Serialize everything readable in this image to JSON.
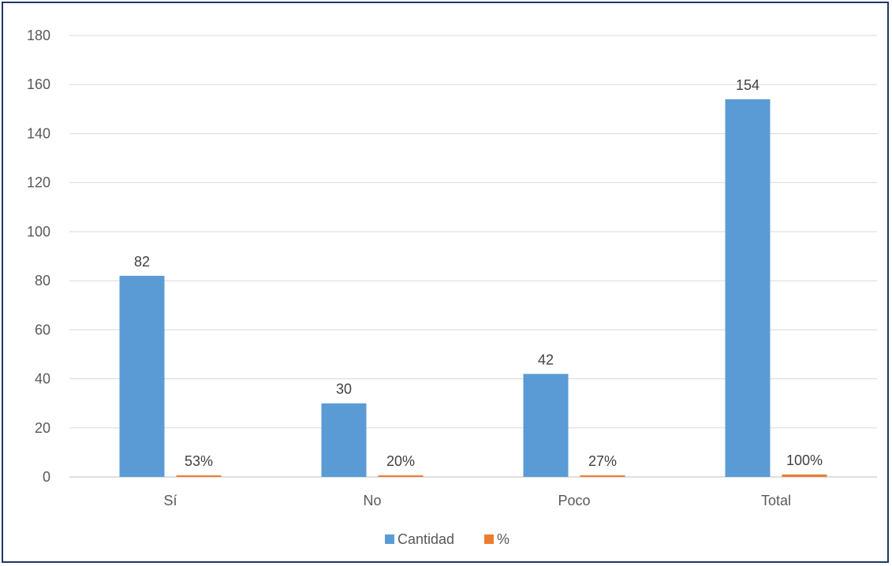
{
  "chart_data": {
    "type": "bar",
    "categories": [
      "Sí",
      "No",
      "Poco",
      "Total"
    ],
    "series": [
      {
        "name": "Cantidad",
        "values": [
          82,
          30,
          42,
          154
        ],
        "labels": [
          "82",
          "30",
          "42",
          "154"
        ],
        "color": "#5b9bd5"
      },
      {
        "name": "%",
        "values": [
          0.53,
          0.2,
          0.27,
          1.0
        ],
        "labels": [
          "53%",
          "20%",
          "27%",
          "100%"
        ],
        "color": "#ed7d31"
      }
    ],
    "ylim": [
      0,
      180
    ],
    "yticks": [
      0,
      20,
      40,
      60,
      80,
      100,
      120,
      140,
      160,
      180
    ],
    "grid": true,
    "legend": "bottom",
    "title": "",
    "xlabel": "",
    "ylabel": ""
  }
}
